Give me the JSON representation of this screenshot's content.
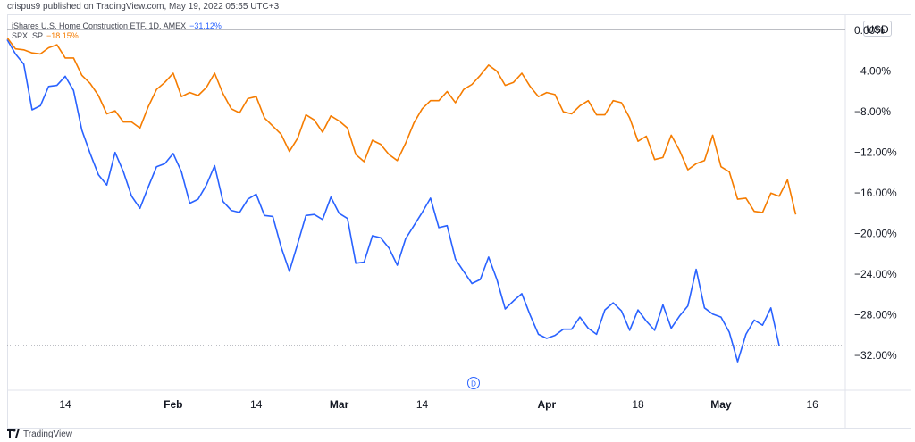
{
  "header": {
    "published_line": "crispus9 published on TradingView.com, May 19, 2022 05:55 UTC+3"
  },
  "legend": {
    "series_a_label": "iShares U.S. Home Construction ETF, 1D, AMEX",
    "series_a_change": "−31.12%",
    "series_b_label": "SPX, SP",
    "series_b_change": "−18.15%"
  },
  "currency_label": "USD",
  "date_marker": "D",
  "footer": {
    "brand": "TradingView"
  },
  "colors": {
    "series_a": "#2962ff",
    "series_b": "#f57c00",
    "grid": "#e0e3eb",
    "text": "#131722"
  },
  "chart_data": {
    "type": "line",
    "y_unit": "%",
    "ylim": [
      -35.5,
      1.5
    ],
    "y_ticks": [
      0,
      -4,
      -8,
      -12,
      -16,
      -20,
      -24,
      -28,
      -32
    ],
    "y_tick_labels": [
      "0.00%",
      "−4.00%",
      "−8.00%",
      "−12.00%",
      "−16.00%",
      "−20.00%",
      "−24.00%",
      "−28.00%",
      "−32.00%"
    ],
    "x_tick_labels": [
      {
        "label": "14",
        "bold": false,
        "index": 7
      },
      {
        "label": "Feb",
        "bold": true,
        "index": 20
      },
      {
        "label": "14",
        "bold": false,
        "index": 30
      },
      {
        "label": "Mar",
        "bold": true,
        "index": 40
      },
      {
        "label": "14",
        "bold": false,
        "index": 50
      },
      {
        "label": "Apr",
        "bold": true,
        "index": 65
      },
      {
        "label": "18",
        "bold": false,
        "index": 76
      },
      {
        "label": "May",
        "bold": true,
        "index": 86
      },
      {
        "label": "16",
        "bold": false,
        "index": 97
      }
    ],
    "grid": false,
    "legend": "top-left",
    "series": [
      {
        "name": "iShares U.S. Home Construction ETF, 1D, AMEX",
        "values": [
          -1.0,
          -2.4,
          -3.4,
          -7.9,
          -7.5,
          -5.6,
          -5.5,
          -4.6,
          -6.0,
          -9.9,
          -12.2,
          -14.3,
          -15.3,
          -12.1,
          -14.0,
          -16.4,
          -17.6,
          -15.5,
          -13.5,
          -13.2,
          -12.2,
          -14.0,
          -17.1,
          -16.7,
          -15.3,
          -13.4,
          -16.9,
          -17.8,
          -18.0,
          -16.7,
          -16.2,
          -18.3,
          -18.4,
          -21.4,
          -23.8,
          -21.1,
          -18.3,
          -18.2,
          -18.7,
          -16.5,
          -18.1,
          -18.6,
          -23.0,
          -22.9,
          -20.3,
          -20.5,
          -21.5,
          -23.2,
          -20.6,
          -19.3,
          -18.0,
          -16.6,
          -19.5,
          -19.3,
          -22.6,
          -23.8,
          -25.0,
          -24.6,
          -22.4,
          -24.6,
          -27.5,
          -26.7,
          -26.0,
          -28.1,
          -30.0,
          -30.4,
          -30.1,
          -29.5,
          -29.5,
          -28.3,
          -29.4,
          -30.0,
          -27.6,
          -26.9,
          -27.7,
          -29.6,
          -27.6,
          -28.7,
          -29.6,
          -27.1,
          -29.4,
          -28.2,
          -27.2,
          -23.6,
          -27.4,
          -28.0,
          -28.3,
          -29.8,
          -32.7,
          -30.0,
          -28.6,
          -29.1,
          -27.4,
          -31.1
        ]
      },
      {
        "name": "SPX, SP",
        "values": [
          -0.8,
          -1.9,
          -2.0,
          -2.3,
          -2.4,
          -1.8,
          -1.5,
          -2.8,
          -2.8,
          -4.5,
          -5.3,
          -6.5,
          -8.3,
          -8.0,
          -9.1,
          -9.1,
          -9.7,
          -7.6,
          -5.9,
          -5.2,
          -4.3,
          -6.6,
          -6.2,
          -6.5,
          -5.7,
          -4.3,
          -6.3,
          -7.8,
          -8.2,
          -6.8,
          -6.6,
          -8.7,
          -9.5,
          -10.3,
          -12.0,
          -10.7,
          -8.4,
          -8.9,
          -10.1,
          -8.5,
          -9.0,
          -9.7,
          -12.3,
          -13.0,
          -10.9,
          -11.3,
          -12.3,
          -12.9,
          -11.2,
          -9.2,
          -7.8,
          -7.0,
          -7.0,
          -6.1,
          -7.2,
          -5.9,
          -5.4,
          -4.5,
          -3.5,
          -4.1,
          -5.5,
          -5.2,
          -4.3,
          -5.6,
          -6.6,
          -6.2,
          -6.4,
          -8.1,
          -8.3,
          -7.5,
          -7.0,
          -8.4,
          -8.4,
          -7.0,
          -7.2,
          -8.7,
          -11.0,
          -10.5,
          -12.8,
          -12.6,
          -10.4,
          -11.9,
          -13.8,
          -13.2,
          -12.9,
          -10.4,
          -13.5,
          -14.0,
          -16.7,
          -16.6,
          -17.9,
          -18.0,
          -16.1,
          -16.4,
          -14.8,
          -18.2
        ]
      }
    ]
  }
}
